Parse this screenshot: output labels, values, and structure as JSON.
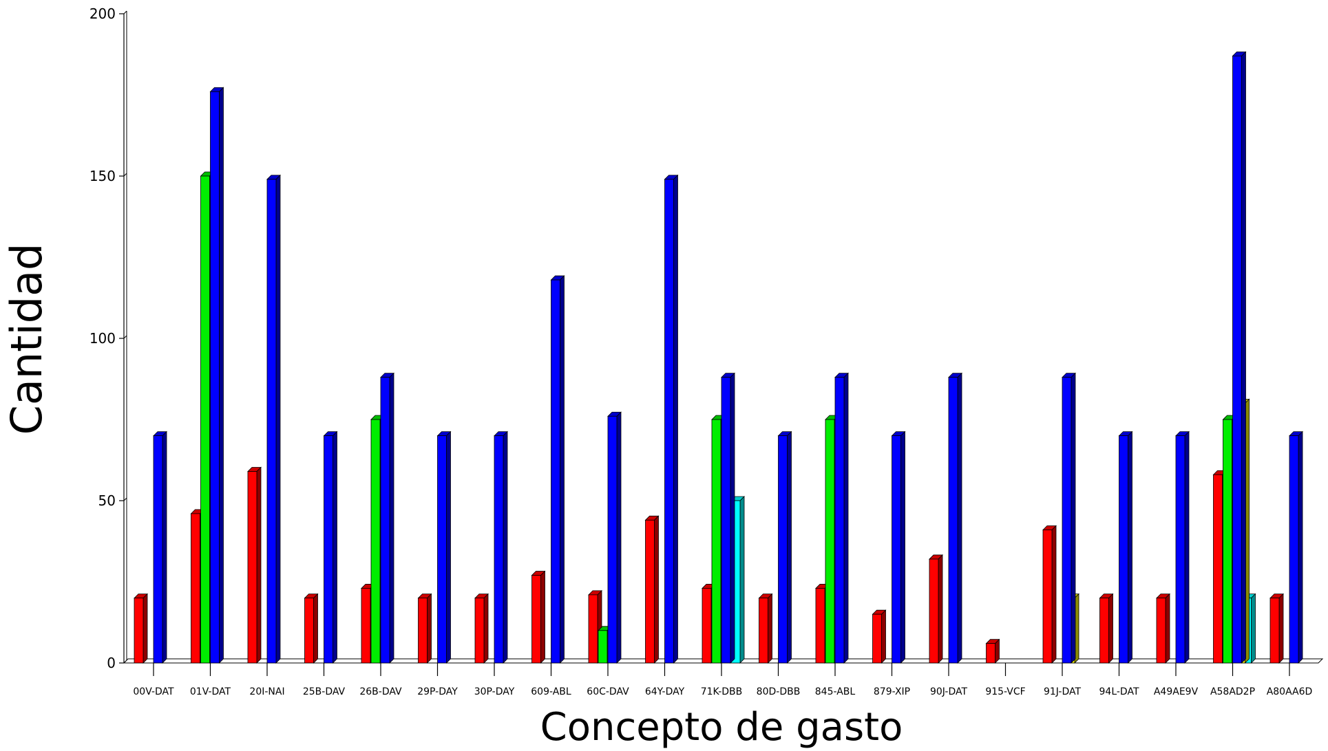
{
  "chart_data": {
    "type": "bar",
    "title": "",
    "xlabel": "Concepto de gasto",
    "ylabel": "Cantidad",
    "ylim": [
      0,
      200
    ],
    "yticks": [
      "0",
      "50",
      "100",
      "150",
      "200"
    ],
    "grid": false,
    "legend": "none",
    "categories": [
      "00V-DAT",
      "01V-DAT",
      "20I-NAI",
      "25B-DAV",
      "26B-DAV",
      "29P-DAY",
      "30P-DAY",
      "609-ABL",
      "60C-DAV",
      "64Y-DAY",
      "71K-DBB",
      "80D-DBB",
      "845-ABL",
      "879-XIP",
      "90J-DAT",
      "915-VCF",
      "91J-DAT",
      "94L-DAT",
      "A49AE9V",
      "A58AD2P",
      "A80AA6D"
    ],
    "series": [
      {
        "color": "#ff0000",
        "values": [
          20,
          46,
          59,
          20,
          23,
          20,
          20,
          27,
          21,
          44,
          23,
          20,
          23,
          15,
          32,
          6,
          41,
          20,
          20,
          58,
          20
        ]
      },
      {
        "color": "#00ee00",
        "values": [
          null,
          150,
          null,
          null,
          75,
          null,
          null,
          null,
          10,
          null,
          75,
          null,
          75,
          null,
          null,
          null,
          null,
          null,
          null,
          75,
          null
        ]
      },
      {
        "color": "#00ffff",
        "values": [
          null,
          null,
          null,
          null,
          null,
          null,
          null,
          null,
          null,
          null,
          50,
          null,
          null,
          null,
          null,
          null,
          null,
          null,
          null,
          20,
          null
        ]
      },
      {
        "color": "#ffff00",
        "values": [
          null,
          null,
          null,
          null,
          null,
          null,
          null,
          null,
          null,
          null,
          null,
          null,
          null,
          null,
          null,
          null,
          20,
          null,
          null,
          80,
          null
        ]
      },
      {
        "color": "#0000ff",
        "values": [
          70,
          176,
          149,
          70,
          88,
          70,
          70,
          118,
          76,
          149,
          88,
          70,
          88,
          70,
          88,
          null,
          88,
          70,
          70,
          187,
          70
        ]
      }
    ]
  }
}
